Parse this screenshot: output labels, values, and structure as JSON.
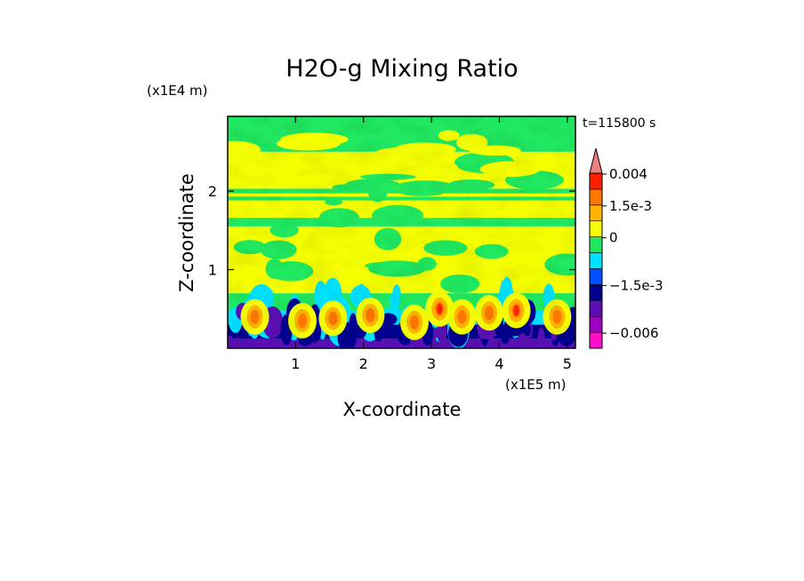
{
  "chart_data": {
    "type": "heatmap",
    "title": "H2O-g Mixing Ratio",
    "xlabel": "X-coordinate",
    "ylabel": "Z-coordinate",
    "x_scale_label": "(x1E5 m)",
    "y_scale_label": "(x1E4 m)",
    "timestamp": "t=115800 s",
    "x_ticks": [
      {
        "value": 1,
        "label": "1"
      },
      {
        "value": 2,
        "label": "2"
      },
      {
        "value": 3,
        "label": "3"
      },
      {
        "value": 4,
        "label": "4"
      },
      {
        "value": 5,
        "label": "5"
      }
    ],
    "y_ticks": [
      {
        "value": 1,
        "label": "1"
      },
      {
        "value": 2,
        "label": "2"
      }
    ],
    "xlim": [
      0,
      5.12
    ],
    "ylim": [
      0,
      2.95
    ],
    "colorbar": {
      "levels": [
        {
          "color": "#ff10c8"
        },
        {
          "color": "#a000c0"
        },
        {
          "color": "#5a10b4"
        },
        {
          "color": "#000090"
        },
        {
          "color": "#0050ff"
        },
        {
          "color": "#00e0ff"
        },
        {
          "color": "#20e860"
        },
        {
          "color": "#f5ff00"
        },
        {
          "color": "#ffb400"
        },
        {
          "color": "#ff7800"
        },
        {
          "color": "#ff2000"
        },
        {
          "color": "#f08080"
        }
      ],
      "labels": [
        {
          "text": "0.004",
          "level": 11
        },
        {
          "text": "1.5e-3",
          "level": 9
        },
        {
          "text": "0",
          "level": 7
        },
        {
          "text": "−1.5e-3",
          "level": 4
        },
        {
          "text": "−0.006",
          "level": 1
        }
      ]
    }
  }
}
